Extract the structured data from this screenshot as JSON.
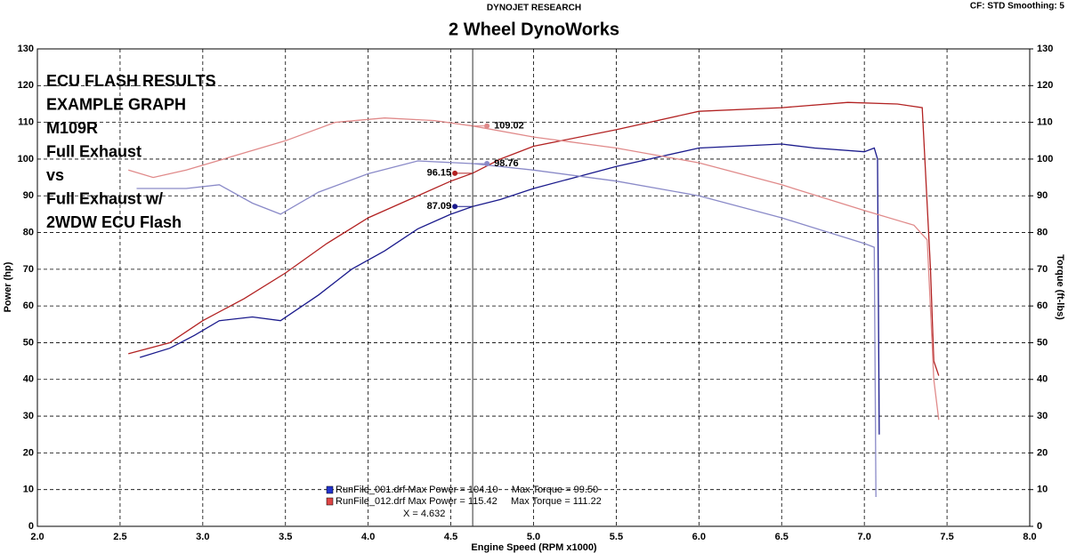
{
  "chart_data": {
    "type": "line",
    "header": "DYNOJET RESEARCH",
    "title": "2 Wheel DynoWorks",
    "settings_text": "CF: STD  Smoothing: 5",
    "xlabel": "Engine Speed (RPM x1000)",
    "ylabel": "Power (hp)",
    "y2label": "Torque (ft-lbs)",
    "xlim": [
      2,
      8
    ],
    "ylim": [
      0,
      130
    ],
    "y2lim": [
      0,
      130
    ],
    "xticks": [
      {
        "value": 2,
        "label": "2.0"
      },
      2.5,
      {
        "value": 3,
        "label": "3.0"
      },
      3.5,
      {
        "value": 4,
        "label": "4.0"
      },
      4.5,
      {
        "value": 5,
        "label": "5.0"
      },
      5.5,
      {
        "value": 6,
        "label": "6.0"
      },
      6.5,
      {
        "value": 7,
        "label": "7.0"
      },
      7.5,
      {
        "value": 8,
        "label": "8.0"
      }
    ],
    "yticks": [
      0,
      10,
      20,
      30,
      40,
      50,
      60,
      70,
      80,
      90,
      100,
      110,
      120,
      130
    ],
    "y2ticks": [
      0,
      10,
      20,
      30,
      40,
      50,
      60,
      70,
      80,
      90,
      100,
      110,
      120,
      130
    ],
    "grid": true,
    "annotations": [
      {
        "text": "ECU FLASH RESULTS",
        "color": "#000000"
      },
      {
        "text": "EXAMPLE GRAPH",
        "color": "#000000"
      },
      {
        "text": "M109R",
        "color": "#000000"
      },
      {
        "text": "Full Exhaust",
        "color": "#1e9ad6"
      },
      {
        "text": "vs",
        "color": "#000000"
      },
      {
        "text": "Full Exhaust w/",
        "color": "#e02020"
      },
      {
        "text": "2WDW ECU Flash",
        "color": "#e02020"
      }
    ],
    "legend": [
      {
        "text": "RunFile_001.drf Max Power = 104.10     Max Torque = 99.50",
        "color": "#2233cc"
      },
      {
        "text": "RunFile_012.drf Max Power = 115.42     Max Torque = 111.22",
        "color": "#dd4444"
      }
    ],
    "cursor": {
      "x": 4.632,
      "label": "X = 4.632"
    },
    "series": [
      {
        "color": "#1a1a8c",
        "x": [
          2.62,
          2.8,
          2.95,
          3.1,
          3.3,
          3.47,
          3.7,
          3.9,
          4.1,
          4.3,
          4.5,
          4.632,
          4.8,
          5.0,
          5.5,
          6.0,
          6.5,
          6.7,
          7.0,
          7.06,
          7.08,
          7.09
        ],
        "values": [
          46,
          48.5,
          52,
          56,
          57,
          56,
          63,
          70,
          75,
          81,
          85,
          87.09,
          89,
          92,
          98,
          103,
          104.1,
          103,
          102,
          103,
          100,
          25
        ]
      },
      {
        "color": "#b22222",
        "x": [
          2.55,
          2.8,
          3.0,
          3.25,
          3.5,
          3.75,
          4.0,
          4.25,
          4.5,
          4.632,
          4.8,
          5.0,
          5.5,
          6.0,
          6.5,
          6.9,
          7.2,
          7.35,
          7.4,
          7.42,
          7.45
        ],
        "values": [
          47,
          50,
          56,
          62,
          69,
          77,
          84,
          89,
          94,
          96.15,
          100,
          103.5,
          108,
          113,
          114,
          115.42,
          115,
          114,
          70,
          45,
          41
        ]
      },
      {
        "color": "#8a8ac8",
        "axis": "y2",
        "x": [
          2.6,
          2.9,
          3.1,
          3.3,
          3.47,
          3.7,
          4.0,
          4.3,
          4.632,
          5.0,
          5.5,
          6.0,
          6.5,
          7.0,
          7.06,
          7.07
        ],
        "values": [
          92,
          92,
          93,
          88,
          85,
          91,
          96,
          99.5,
          98.76,
          97,
          94,
          90,
          84,
          77,
          76,
          8
        ]
      },
      {
        "color": "#e08a8a",
        "axis": "y2",
        "x": [
          2.55,
          2.7,
          2.9,
          3.2,
          3.5,
          3.8,
          4.1,
          4.4,
          4.632,
          5.0,
          5.5,
          6.0,
          6.5,
          7.0,
          7.3,
          7.38,
          7.42,
          7.45
        ],
        "values": [
          97,
          95,
          97,
          101,
          105,
          110,
          111.2,
          110.5,
          109.02,
          106,
          103,
          99,
          93,
          86,
          82,
          78,
          40,
          29
        ]
      }
    ]
  }
}
